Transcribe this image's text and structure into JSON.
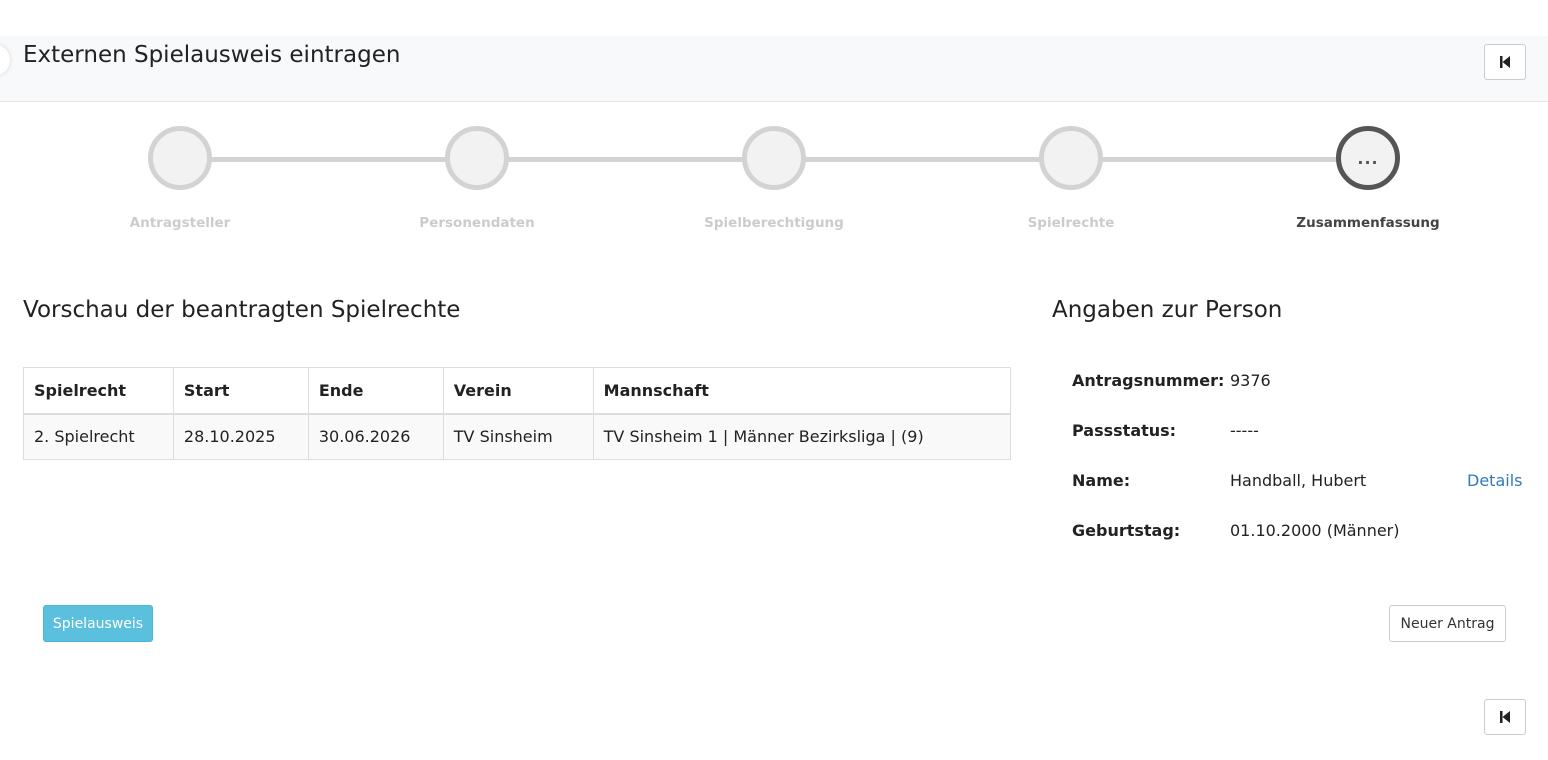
{
  "header": {
    "title": "Externen Spielausweis eintragen",
    "collapse_icon": "skip-back-icon"
  },
  "stepper": {
    "steps": [
      {
        "label": "Antragsteller",
        "active": false
      },
      {
        "label": "Personendaten",
        "active": false
      },
      {
        "label": "Spielberechtigung",
        "active": false
      },
      {
        "label": "Spielrechte",
        "active": false
      },
      {
        "label": "Zusammenfassung",
        "active": true,
        "marker": "..."
      }
    ]
  },
  "preview": {
    "heading": "Vorschau der beantragten Spielrechte",
    "columns": [
      "Spielrecht",
      "Start",
      "Ende",
      "Verein",
      "Mannschaft"
    ],
    "rows": [
      [
        "2. Spielrecht",
        "28.10.2025",
        "30.06.2026",
        "TV Sinsheim",
        "TV Sinsheim 1 | Männer Bezirksliga | (9)"
      ]
    ]
  },
  "person": {
    "heading": "Angaben zur Person",
    "fields": [
      {
        "label": "Antragsnummer:",
        "value": "9376"
      },
      {
        "label": "Passstatus:",
        "value": "-----"
      },
      {
        "label": "Name:",
        "value": "Handball, Hubert",
        "link": "Details"
      },
      {
        "label": "Geburtstag:",
        "value": "01.10.2000 (Männer)"
      }
    ]
  },
  "actions": {
    "spielausweis": "Spielausweis",
    "neuer_antrag": "Neuer Antrag"
  },
  "colors": {
    "info": "#5bc0de",
    "link": "#337ab7",
    "step_inactive": "#d3d3d3",
    "step_active": "#555555"
  }
}
